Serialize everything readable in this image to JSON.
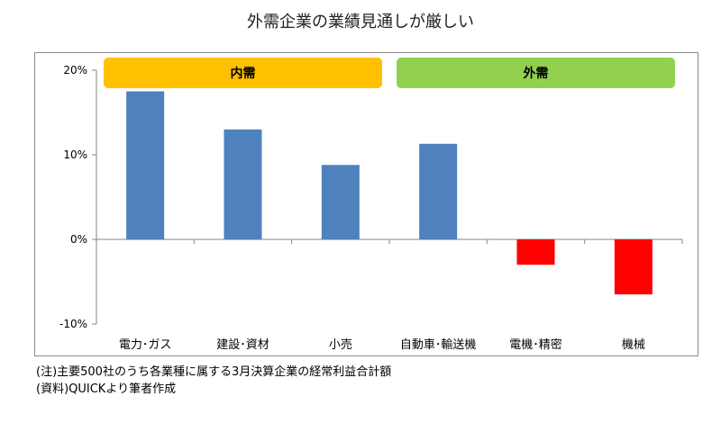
{
  "title": "外需企業の業績見通しが厳しい",
  "chart_data": {
    "type": "bar",
    "categories": [
      "電力･ガス",
      "建設･資材",
      "小売",
      "自動車･輸送機",
      "電機･精密",
      "機械"
    ],
    "values": [
      17.5,
      13,
      8.8,
      11.3,
      -3,
      -6.5
    ],
    "bar_colors": [
      "#4F81BD",
      "#4F81BD",
      "#4F81BD",
      "#4F81BD",
      "#FF0000",
      "#FF0000"
    ],
    "ylim": [
      -10,
      20
    ],
    "yticks": [
      20,
      10,
      0,
      -10
    ],
    "ytick_labels": [
      "20%",
      "10%",
      "0%",
      "-10%"
    ],
    "grid": false,
    "groups": [
      {
        "label": "内需",
        "color": "#FFC000",
        "span": [
          0,
          2
        ]
      },
      {
        "label": "外需",
        "color": "#92D050",
        "span": [
          3,
          5
        ]
      }
    ]
  },
  "notes": [
    "(注)主要500社のうち各業種に属する3月決算企業の経常利益合計額",
    "(資料)QUICKより筆者作成"
  ]
}
